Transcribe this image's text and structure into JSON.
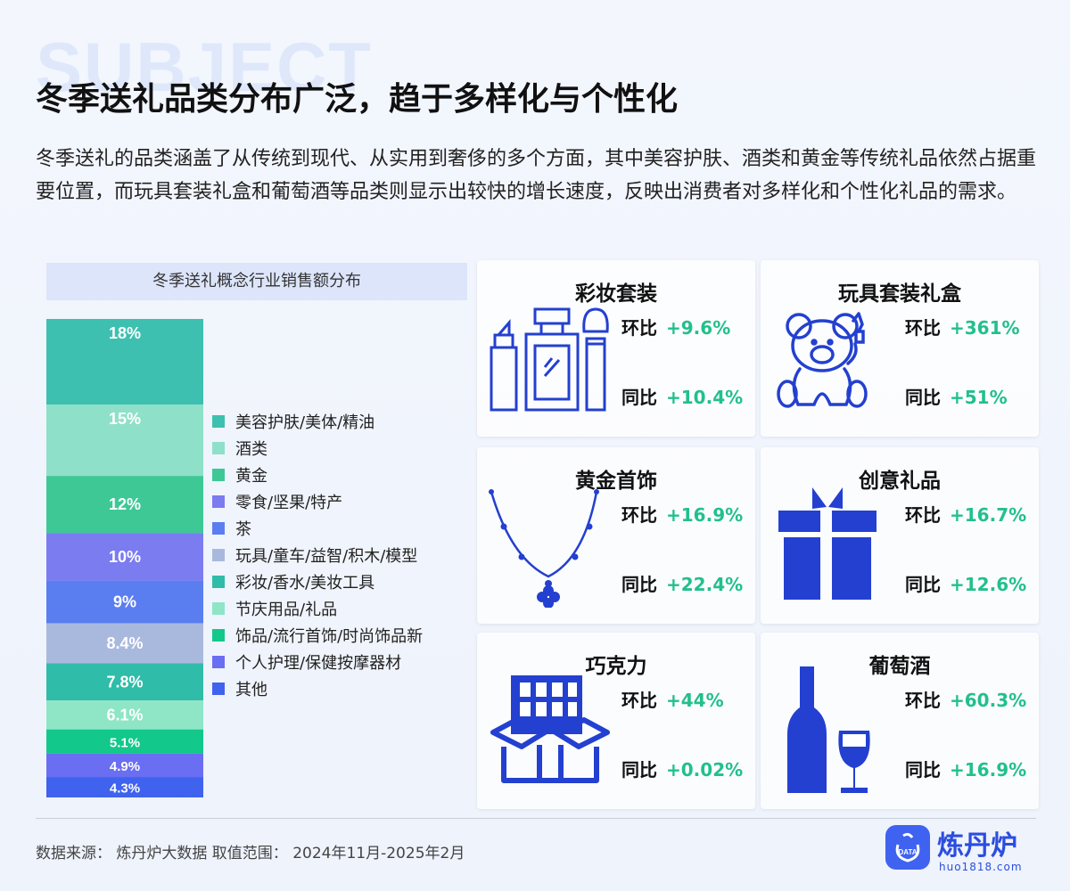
{
  "header": {
    "bg_word": "SUBJECT",
    "title": "冬季送礼品类分布广泛，趋于多样化与个性化",
    "description": "冬季送礼的品类涵盖了从传统到现代、从实用到奢侈的多个方面，其中美容护肤、酒类和黄金等传统礼品依然占据重要位置，而玩具套装礼盒和葡萄酒等品类则显示出较快的增长速度，反映出消费者对多样化和个性化礼品的需求。"
  },
  "chart_data": {
    "type": "bar",
    "subtype": "stacked-100",
    "title": "冬季送礼概念行业销售额分布",
    "categories": [
      "美容护肤/美体/精油",
      "酒类",
      "黄金",
      "零食/坚果/特产",
      "茶",
      "玩具/童车/益智/积木/模型",
      "彩妆/香水/美妆工具",
      "节庆用品/礼品",
      "饰品/流行首饰/时尚饰品新",
      "个人护理/保健按摩器材",
      "其他"
    ],
    "values": [
      18,
      15,
      12,
      10,
      9,
      8.4,
      7.8,
      6.1,
      5.1,
      4.9,
      4.3
    ],
    "labels": [
      "18%",
      "15%",
      "12%",
      "10%",
      "9%",
      "8.4%",
      "7.8%",
      "6.1%",
      "5.1%",
      "4.9%",
      "4.3%"
    ],
    "colors": [
      "#3ec0b0",
      "#8fe0c8",
      "#3ec896",
      "#7b7cf0",
      "#5a7ef0",
      "#a9b9de",
      "#2fbca8",
      "#8ee6c6",
      "#12c88a",
      "#6a6ef2",
      "#3f63ee"
    ],
    "legend_position": "right"
  },
  "cards": [
    {
      "name": "彩妆套装",
      "icon": "makeup-set-icon",
      "mom_label": "环比",
      "mom": "+9.6%",
      "yoy_label": "同比",
      "yoy": "+10.4%"
    },
    {
      "name": "玩具套装礼盒",
      "icon": "teddy-bear-icon",
      "mom_label": "环比",
      "mom": "+361%",
      "yoy_label": "同比",
      "yoy": "+51%"
    },
    {
      "name": "黄金首饰",
      "icon": "necklace-icon",
      "mom_label": "环比",
      "mom": "+16.9%",
      "yoy_label": "同比",
      "yoy": "+22.4%"
    },
    {
      "name": "创意礼品",
      "icon": "gift-box-icon",
      "mom_label": "环比",
      "mom": "+16.7%",
      "yoy_label": "同比",
      "yoy": "+12.6%"
    },
    {
      "name": "巧克力",
      "icon": "chocolate-box-icon",
      "mom_label": "环比",
      "mom": "+44%",
      "yoy_label": "同比",
      "yoy": "+0.02%"
    },
    {
      "name": "葡萄酒",
      "icon": "wine-bottle-icon",
      "mom_label": "环比",
      "mom": "+60.3%",
      "yoy_label": "同比",
      "yoy": "+16.9%"
    }
  ],
  "footer": {
    "source": "数据来源：  炼丹炉大数据   取值范围：  2024年11月-2025年2月",
    "logo_name": "炼丹炉",
    "logo_url": "huo1818.com",
    "logo_badge": "DATA"
  },
  "colors": {
    "accent": "#2b4de0",
    "positive": "#22c08a",
    "icon": "#2340d0"
  }
}
